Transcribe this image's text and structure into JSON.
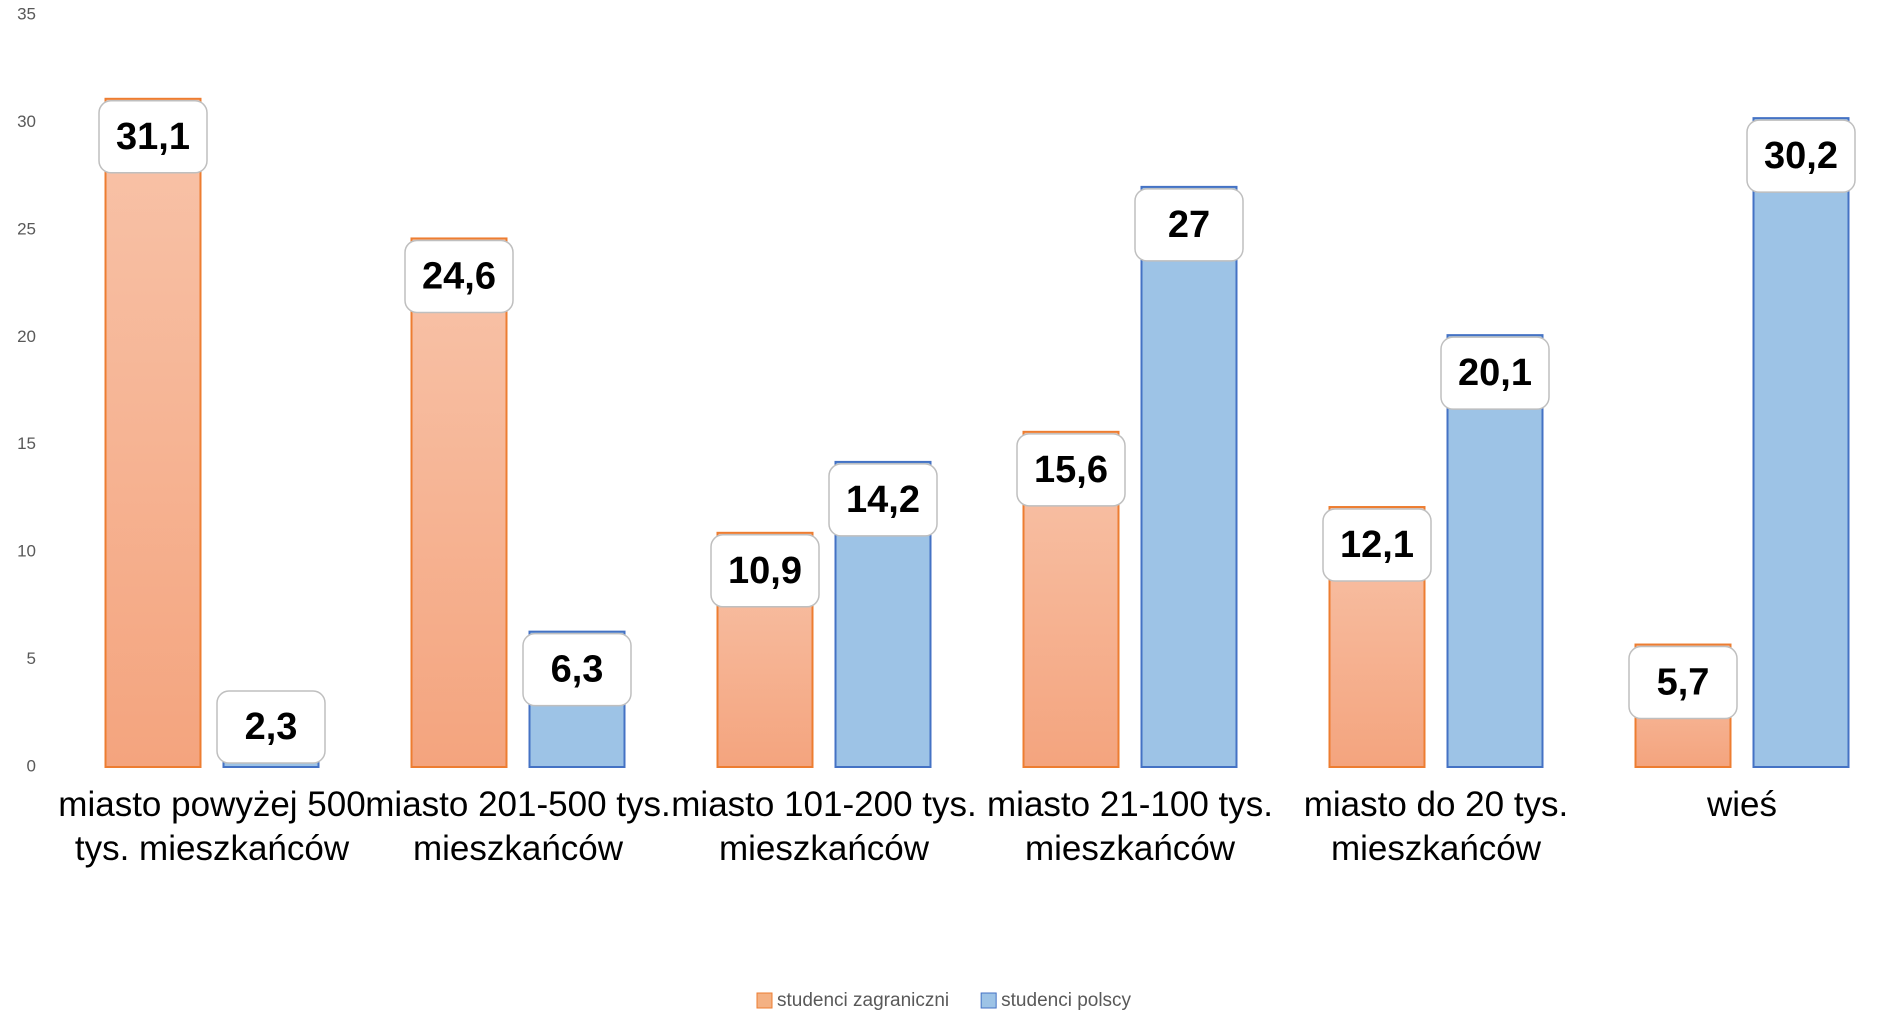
{
  "chart_data": {
    "type": "bar",
    "categories": [
      "miasto powyżej 500 tys. mieszkańców",
      "miasto 201-500 tys. mieszkańców",
      "miasto 101-200 tys. mieszkańców",
      "miasto 21-100 tys. mieszkańców",
      "miasto do 20 tys. mieszkańców",
      "wieś"
    ],
    "series": [
      {
        "name": "studenci zagraniczni",
        "color": "#f4b183",
        "border": "#ed7d31",
        "values": [
          31.1,
          24.6,
          10.9,
          15.6,
          12.1,
          5.7
        ],
        "value_labels": [
          "31,1",
          "24,6",
          "10,9",
          "15,6",
          "12,1",
          "5,7"
        ]
      },
      {
        "name": "studenci polscy",
        "color": "#9dc3e6",
        "border": "#4472c4",
        "values": [
          2.3,
          6.3,
          14.2,
          27,
          20.1,
          30.2
        ],
        "value_labels": [
          "2,3",
          "6,3",
          "14,2",
          "27",
          "20,1",
          "30,2"
        ]
      }
    ],
    "ylim": [
      0,
      35
    ],
    "yticks": [
      0,
      5,
      10,
      15,
      20,
      25,
      30,
      35
    ],
    "grid": false,
    "legend": "bottom"
  }
}
